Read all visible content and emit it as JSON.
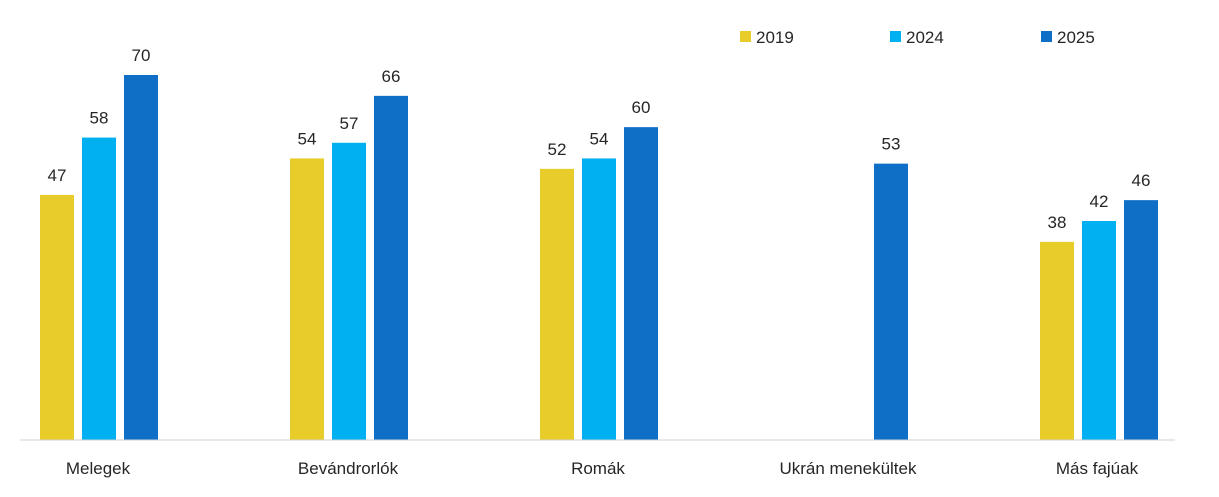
{
  "chart_data": {
    "type": "bar",
    "title": "",
    "xlabel": "",
    "ylabel": "",
    "ylim": [
      0,
      70
    ],
    "grid": false,
    "legend_position": "top-right",
    "categories": [
      "Melegek",
      "Bevándrorlók",
      "Romák",
      "Ukrán menekültek",
      "Más fajúak"
    ],
    "series": [
      {
        "name": "2019",
        "color": "#E8CC2A",
        "values": [
          47,
          54,
          52,
          null,
          38
        ]
      },
      {
        "name": "2024",
        "color": "#00B0F0",
        "values": [
          58,
          57,
          54,
          null,
          42
        ]
      },
      {
        "name": "2025",
        "color": "#0F6FC6",
        "values": [
          70,
          66,
          60,
          53,
          46
        ]
      }
    ]
  }
}
